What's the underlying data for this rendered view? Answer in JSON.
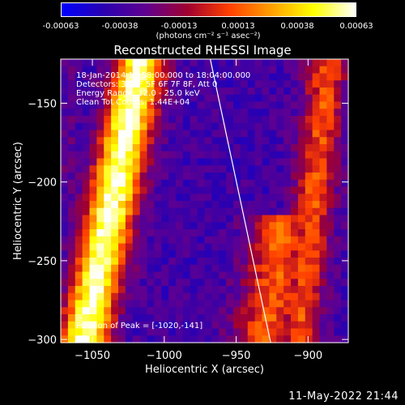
{
  "colorbar": {
    "ticks": [
      "-0.00063",
      "-0.00038",
      "-0.00013",
      "0.00013",
      "0.00038",
      "0.00063"
    ],
    "unit_label": "(photons cm⁻² s⁻¹ asec⁻²)",
    "range": [
      -0.00063,
      0.00063
    ],
    "colormap": [
      "#0000ff",
      "#2a00b0",
      "#600090",
      "#a00030",
      "#ff4000",
      "#ffa000",
      "#ffff00",
      "#ffffff"
    ]
  },
  "info": {
    "time_range": "18-Jan-2014 17:58:00.000 to 18:04:00.000",
    "detectors": "Detectors: 3F 4F 5F 6F 7F 8F, Att 0",
    "energy": "Energy Range: 12.0 - 25.0 keV",
    "clean": "Clean    Tot Counts: 1.44E+04",
    "peak": "Position of Peak = [-1020,-141]"
  },
  "footer_date": "11-May-2022 21:44",
  "chart_data": {
    "type": "heatmap",
    "title": "Reconstructed RHESSI Image",
    "xlabel": "Heliocentric X (arcsec)",
    "ylabel": "Heliocentric Y (arcsec)",
    "xlim": [
      -1072,
      -872
    ],
    "ylim": [
      -302,
      -122
    ],
    "xticks": [
      -1050,
      -1000,
      -950,
      -900
    ],
    "yticks": [
      -150,
      -200,
      -250,
      -300
    ],
    "xtick_labels": [
      "−1050",
      "−1000",
      "−950",
      "−900"
    ],
    "ytick_labels": [
      "−150",
      "−200",
      "−250",
      "−300"
    ],
    "peak": [
      -1020,
      -141
    ],
    "limb_line": [
      [
        -968,
        -122
      ],
      [
        -926,
        -302
      ]
    ]
  }
}
